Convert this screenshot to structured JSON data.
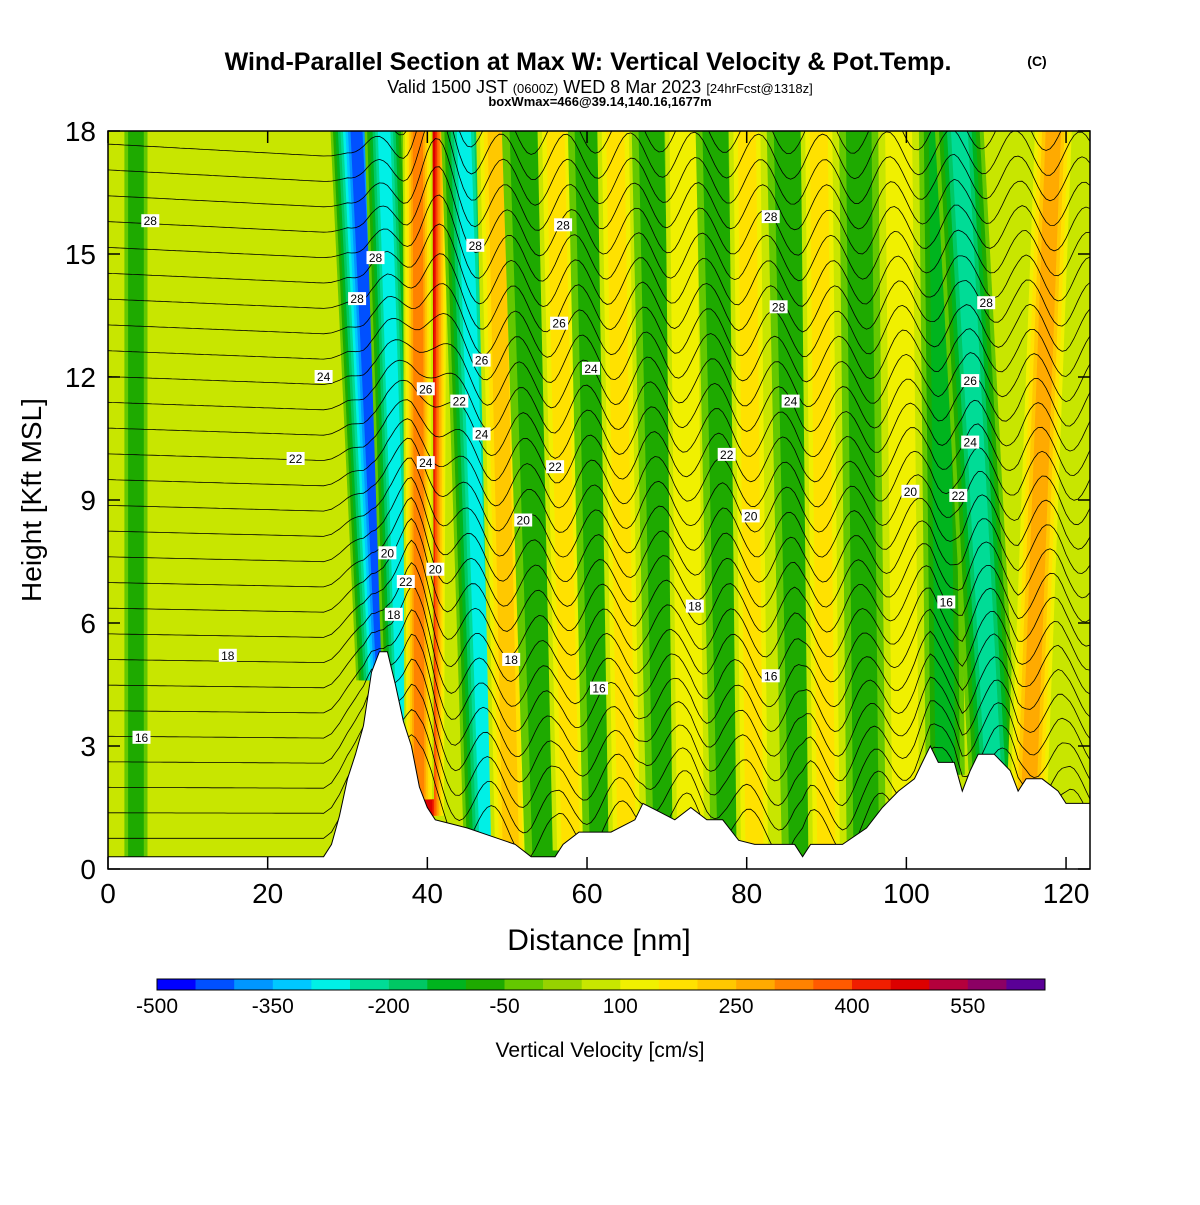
{
  "chart_data": {
    "type": "heatmap",
    "title": "Wind-Parallel Section at Max W: Vertical Velocity & Pot.Temp.",
    "title_mark": "(C)",
    "subtitle": {
      "valid_prefix": "Valid 1500 JST",
      "zulu": "(0600Z)",
      "date": "WED 8 Mar 2023",
      "forecast": "[24hrFcst@1318z]"
    },
    "box_line": "boxWmax=466@39.14,140.16,1677m",
    "xlabel": "Distance [nm]",
    "ylabel": "Height [Kft MSL]",
    "xlim": [
      0,
      123
    ],
    "ylim": [
      0,
      18
    ],
    "xticks": [
      "0",
      "20",
      "40",
      "60",
      "80",
      "100",
      "120"
    ],
    "yticks": [
      "0",
      "3",
      "6",
      "9",
      "12",
      "15",
      "18"
    ],
    "colorbar": {
      "label": "Vertical Velocity [cm/s]",
      "levels": [
        -500,
        -450,
        -400,
        -350,
        -300,
        -250,
        -200,
        -150,
        -100,
        -50,
        0,
        50,
        100,
        150,
        200,
        250,
        300,
        350,
        400,
        450,
        500,
        550,
        600
      ],
      "tick_labels": [
        "-500",
        "-350",
        "-200",
        "-50",
        "100",
        "250",
        "400",
        "550"
      ],
      "colors": [
        "#0000ff",
        "#0050ff",
        "#0096ff",
        "#00c8ff",
        "#00f0e6",
        "#00dc96",
        "#00c864",
        "#00b41e",
        "#1eaa00",
        "#64c800",
        "#96d200",
        "#c8e600",
        "#f0f000",
        "#ffe100",
        "#ffc800",
        "#ffaa00",
        "#ff8200",
        "#ff5a00",
        "#f01e00",
        "#dc0000",
        "#b4003c",
        "#8c0064",
        "#5a0096"
      ]
    },
    "features": [
      {
        "x": 35.5,
        "x_top": 31,
        "width": 3.0,
        "w": -450
      },
      {
        "x": 37.5,
        "x_top": 34.5,
        "width": 2.2,
        "w": -300
      },
      {
        "x": 39.8,
        "x_top": 40.2,
        "width": 2.2,
        "w": 466
      },
      {
        "x": 39.0,
        "x_top": 38.8,
        "width": 1.6,
        "w": 300
      },
      {
        "x": 47.5,
        "x_top": 44.5,
        "width": 2.6,
        "w": -300
      },
      {
        "x": 50.5,
        "x_top": 48.5,
        "width": 2.2,
        "w": 200
      },
      {
        "x": 55,
        "x_top": 52,
        "width": 2.5,
        "w": -80
      },
      {
        "x": 58,
        "x_top": 56,
        "width": 2.0,
        "w": 150
      },
      {
        "x": 62,
        "x_top": 60,
        "width": 2.2,
        "w": -90
      },
      {
        "x": 65,
        "x_top": 63.5,
        "width": 2.0,
        "w": 150
      },
      {
        "x": 70,
        "x_top": 68,
        "width": 2.2,
        "w": -90
      },
      {
        "x": 73,
        "x_top": 72,
        "width": 2.0,
        "w": 120
      },
      {
        "x": 78,
        "x_top": 76,
        "width": 2.2,
        "w": -90
      },
      {
        "x": 81,
        "x_top": 80,
        "width": 2.0,
        "w": 150
      },
      {
        "x": 87,
        "x_top": 85,
        "width": 2.3,
        "w": -90
      },
      {
        "x": 90,
        "x_top": 89,
        "width": 2.0,
        "w": 150
      },
      {
        "x": 95,
        "x_top": 94,
        "width": 2.2,
        "w": -80
      },
      {
        "x": 100,
        "x_top": 99,
        "width": 2.0,
        "w": 120
      },
      {
        "x": 105,
        "x_top": 104,
        "width": 2.2,
        "w": -120
      },
      {
        "x": 111.5,
        "x_top": 106.5,
        "width": 2.8,
        "w": -230
      },
      {
        "x": 115,
        "x_top": 118.5,
        "width": 2.5,
        "w": 250
      },
      {
        "x": 3.5,
        "x_top": 3.5,
        "width": 1.2,
        "w": -60
      }
    ],
    "terrain": [
      [
        0,
        0.3
      ],
      [
        27,
        0.3
      ],
      [
        28,
        0.6
      ],
      [
        29,
        1.3
      ],
      [
        30,
        2.2
      ],
      [
        31,
        2.8
      ],
      [
        32,
        3.5
      ],
      [
        33,
        4.8
      ],
      [
        34,
        5.3
      ],
      [
        35,
        5.3
      ],
      [
        36,
        4.5
      ],
      [
        37,
        3.6
      ],
      [
        38,
        3.0
      ],
      [
        38.5,
        2.5
      ],
      [
        39,
        2.0
      ],
      [
        40,
        1.5
      ],
      [
        41,
        1.2
      ],
      [
        43,
        1.1
      ],
      [
        45,
        1.0
      ],
      [
        48,
        0.8
      ],
      [
        51,
        0.6
      ],
      [
        53,
        0.3
      ],
      [
        56,
        0.3
      ],
      [
        57,
        0.6
      ],
      [
        59,
        0.9
      ],
      [
        63,
        0.9
      ],
      [
        66,
        1.2
      ],
      [
        67,
        1.6
      ],
      [
        69,
        1.4
      ],
      [
        71,
        1.2
      ],
      [
        73,
        1.5
      ],
      [
        75,
        1.2
      ],
      [
        77,
        1.2
      ],
      [
        79,
        0.7
      ],
      [
        81,
        0.6
      ],
      [
        86,
        0.6
      ],
      [
        87,
        0.3
      ],
      [
        88,
        0.6
      ],
      [
        92,
        0.6
      ],
      [
        95,
        1.0
      ],
      [
        97,
        1.5
      ],
      [
        99,
        1.9
      ],
      [
        101,
        2.2
      ],
      [
        102,
        2.6
      ],
      [
        103,
        3.0
      ],
      [
        104,
        2.6
      ],
      [
        106,
        2.6
      ],
      [
        107,
        1.9
      ],
      [
        108,
        2.4
      ],
      [
        109,
        2.8
      ],
      [
        111,
        2.8
      ],
      [
        113,
        2.4
      ],
      [
        114,
        1.9
      ],
      [
        115,
        2.2
      ],
      [
        117,
        2.2
      ],
      [
        119,
        1.9
      ],
      [
        120,
        1.6
      ],
      [
        123,
        1.6
      ]
    ],
    "theta_contour_labels": [
      {
        "text": "28",
        "x": 5.3,
        "y": 15.8
      },
      {
        "text": "28",
        "x": 33.5,
        "y": 14.9
      },
      {
        "text": "28",
        "x": 31.2,
        "y": 13.9
      },
      {
        "text": "24",
        "x": 27.0,
        "y": 12.0
      },
      {
        "text": "22",
        "x": 23.5,
        "y": 10.0
      },
      {
        "text": "18",
        "x": 15.0,
        "y": 5.2
      },
      {
        "text": "16",
        "x": 4.2,
        "y": 3.2
      },
      {
        "text": "20",
        "x": 35.0,
        "y": 7.7
      },
      {
        "text": "22",
        "x": 37.3,
        "y": 7.0
      },
      {
        "text": "18",
        "x": 35.8,
        "y": 6.2
      },
      {
        "text": "20",
        "x": 41.0,
        "y": 7.3
      },
      {
        "text": "24",
        "x": 39.8,
        "y": 9.9
      },
      {
        "text": "26",
        "x": 39.8,
        "y": 11.7
      },
      {
        "text": "22",
        "x": 44.0,
        "y": 11.4
      },
      {
        "text": "24",
        "x": 46.8,
        "y": 10.6
      },
      {
        "text": "26",
        "x": 46.8,
        "y": 12.4
      },
      {
        "text": "28",
        "x": 46.0,
        "y": 15.2
      },
      {
        "text": "28",
        "x": 57.0,
        "y": 15.7
      },
      {
        "text": "26",
        "x": 56.5,
        "y": 13.3
      },
      {
        "text": "24",
        "x": 60.5,
        "y": 12.2
      },
      {
        "text": "22",
        "x": 56.0,
        "y": 9.8
      },
      {
        "text": "20",
        "x": 52.0,
        "y": 8.5
      },
      {
        "text": "18",
        "x": 50.5,
        "y": 5.1
      },
      {
        "text": "16",
        "x": 61.5,
        "y": 4.4
      },
      {
        "text": "18",
        "x": 73.5,
        "y": 6.4
      },
      {
        "text": "16",
        "x": 83.0,
        "y": 4.7
      },
      {
        "text": "20",
        "x": 80.5,
        "y": 8.6
      },
      {
        "text": "22",
        "x": 77.5,
        "y": 10.1
      },
      {
        "text": "24",
        "x": 85.5,
        "y": 11.4
      },
      {
        "text": "28",
        "x": 84.0,
        "y": 13.7
      },
      {
        "text": "28",
        "x": 83.0,
        "y": 15.9
      },
      {
        "text": "20",
        "x": 100.5,
        "y": 9.2
      },
      {
        "text": "22",
        "x": 106.5,
        "y": 9.1
      },
      {
        "text": "24",
        "x": 108.0,
        "y": 10.4
      },
      {
        "text": "26",
        "x": 108.0,
        "y": 11.9
      },
      {
        "text": "28",
        "x": 110.0,
        "y": 13.8
      },
      {
        "text": "16",
        "x": 105.0,
        "y": 6.5
      }
    ]
  }
}
